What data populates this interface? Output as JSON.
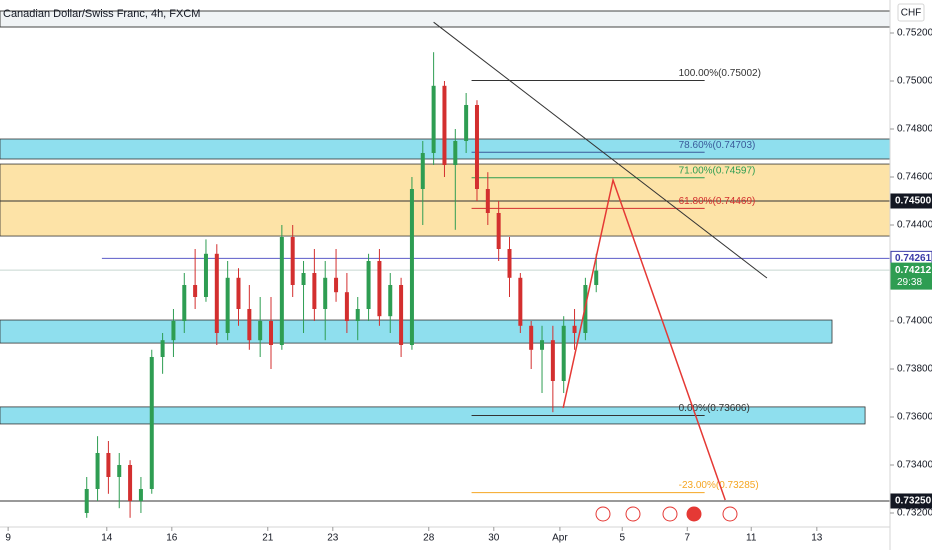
{
  "chart_data": {
    "type": "candlestick",
    "title": "Canadian Dollar/Swiss Franc, 4h, FXCM",
    "currency": "CHF",
    "up_color": "#2e9d52",
    "down_color": "#d32f2f",
    "xlim": [
      0,
      164.2
    ],
    "ylim": [
      0.731708,
      0.753375
    ],
    "xticks": [
      {
        "value": 1.5,
        "label": "9"
      },
      {
        "value": 19.7,
        "label": "14"
      },
      {
        "value": 31.7,
        "label": "16"
      },
      {
        "value": 49.4,
        "label": "21"
      },
      {
        "value": 61.4,
        "label": "23"
      },
      {
        "value": 79.1,
        "label": "28"
      },
      {
        "value": 91.1,
        "label": "30"
      },
      {
        "value": 103.3,
        "label": "Apr"
      },
      {
        "value": 114.8,
        "label": "5"
      },
      {
        "value": 126.8,
        "label": "7"
      },
      {
        "value": 138.6,
        "label": "11"
      },
      {
        "value": 150.7,
        "label": "13"
      }
    ],
    "yticks": [
      {
        "value": 0.752,
        "label": "0.75200"
      },
      {
        "value": 0.75,
        "label": "0.75000"
      },
      {
        "value": 0.748,
        "label": "0.74800"
      },
      {
        "value": 0.746,
        "label": "0.74600"
      },
      {
        "value": 0.744,
        "label": "0.74400"
      },
      {
        "value": 0.74,
        "label": "0.74000"
      },
      {
        "value": 0.738,
        "label": "0.73800"
      },
      {
        "value": 0.736,
        "label": "0.73600"
      },
      {
        "value": 0.734,
        "label": "0.73400"
      },
      {
        "value": 0.732,
        "label": "0.73200"
      }
    ],
    "candles": {
      "x": [
        16,
        18,
        20,
        22,
        24,
        26,
        28,
        30,
        32,
        34,
        36,
        38,
        40,
        42,
        44,
        46,
        48,
        50,
        52,
        54,
        56,
        58,
        60,
        62,
        64,
        66,
        68,
        70,
        72,
        74,
        76,
        78,
        80,
        82,
        84,
        86,
        88,
        90,
        92,
        94,
        96,
        98,
        100,
        102,
        104,
        106,
        108,
        110
      ],
      "open": [
        0.732,
        0.733,
        0.7345,
        0.7335,
        0.734,
        0.7325,
        0.733,
        0.7385,
        0.7392,
        0.74,
        0.7415,
        0.741,
        0.7428,
        0.7395,
        0.7418,
        0.7405,
        0.7392,
        0.74,
        0.739,
        0.7435,
        0.7415,
        0.742,
        0.7405,
        0.7418,
        0.7412,
        0.74,
        0.7405,
        0.7425,
        0.7402,
        0.7415,
        0.739,
        0.7455,
        0.747,
        0.7498,
        0.7465,
        0.7475,
        0.749,
        0.7455,
        0.7445,
        0.743,
        0.7418,
        0.7398,
        0.7388,
        0.7392,
        0.7375,
        0.7398,
        0.7395,
        0.7415
      ],
      "high": [
        0.7335,
        0.7352,
        0.735,
        0.7345,
        0.7342,
        0.7335,
        0.7388,
        0.7395,
        0.7405,
        0.742,
        0.743,
        0.7434,
        0.7432,
        0.7425,
        0.7422,
        0.7415,
        0.741,
        0.741,
        0.744,
        0.744,
        0.7425,
        0.743,
        0.7425,
        0.743,
        0.742,
        0.741,
        0.7428,
        0.743,
        0.742,
        0.7418,
        0.746,
        0.7475,
        0.7512,
        0.75,
        0.748,
        0.7495,
        0.7492,
        0.7462,
        0.745,
        0.7435,
        0.742,
        0.74,
        0.7398,
        0.7398,
        0.7402,
        0.7405,
        0.7418,
        0.7428
      ],
      "low": [
        0.7318,
        0.7325,
        0.7328,
        0.7322,
        0.7318,
        0.732,
        0.7328,
        0.7378,
        0.7385,
        0.7395,
        0.7405,
        0.7408,
        0.739,
        0.7392,
        0.7398,
        0.7388,
        0.7385,
        0.738,
        0.7388,
        0.741,
        0.7395,
        0.74,
        0.7392,
        0.7408,
        0.7395,
        0.7392,
        0.74,
        0.7398,
        0.7395,
        0.7385,
        0.7388,
        0.744,
        0.7465,
        0.746,
        0.7438,
        0.747,
        0.745,
        0.744,
        0.7425,
        0.741,
        0.7395,
        0.738,
        0.737,
        0.7362,
        0.737,
        0.7388,
        0.7392,
        0.7412
      ],
      "close": [
        0.733,
        0.7345,
        0.7335,
        0.734,
        0.7325,
        0.733,
        0.7385,
        0.7392,
        0.74,
        0.7415,
        0.741,
        0.7428,
        0.7395,
        0.7418,
        0.7405,
        0.7392,
        0.74,
        0.739,
        0.7435,
        0.7415,
        0.742,
        0.7405,
        0.7418,
        0.7412,
        0.74,
        0.7405,
        0.7425,
        0.7402,
        0.7415,
        0.739,
        0.7455,
        0.747,
        0.7498,
        0.7465,
        0.7475,
        0.749,
        0.7455,
        0.7445,
        0.743,
        0.7418,
        0.7398,
        0.7388,
        0.7392,
        0.7375,
        0.7398,
        0.7395,
        0.7415,
        0.7421
      ]
    },
    "zones": [
      {
        "top": 0.747583,
        "bottom": 0.74675,
        "x1": 0,
        "x2": 164.2,
        "color": "#8fdfee"
      },
      {
        "top": 0.74654,
        "bottom": 0.74354,
        "x1": 0,
        "x2": 164.2,
        "color": "#fde3a7"
      },
      {
        "top": 0.74004,
        "bottom": 0.73908,
        "x1": 0,
        "x2": 153.5,
        "color": "#8fdfee"
      },
      {
        "top": 0.73642,
        "bottom": 0.73571,
        "x1": 0,
        "x2": 159.6,
        "color": "#8fdfee"
      }
    ],
    "hlines": [
      {
        "value": 0.745,
        "x1": 0,
        "color": "#333333"
      },
      {
        "value": 0.7325,
        "x1": 0,
        "color": "#333333"
      },
      {
        "value": 0.74261,
        "x1": 18.8,
        "color": "#5c5cc8"
      },
      {
        "value": 0.74212,
        "x1": 0,
        "color": "#c8d8d0"
      }
    ],
    "fib": {
      "x1": 87,
      "x2": 130,
      "levels": [
        {
          "value": 0.75002,
          "label": "100.00%(0.75002)",
          "color": "#333333"
        },
        {
          "value": 0.74703,
          "label": "78.60%(0.74703)",
          "color": "#3a5a9a"
        },
        {
          "value": 0.74597,
          "label": "71.00%(0.74597)",
          "color": "#2e9d52"
        },
        {
          "value": 0.74469,
          "label": "61.80%(0.74469)",
          "color": "#d32f2f"
        },
        {
          "value": 0.73606,
          "label": "0.00%(0.73606)",
          "color": "#333333"
        },
        {
          "value": 0.73285,
          "label": "-23.00%(0.73285)",
          "color": "#f5a623"
        }
      ]
    },
    "trendline": {
      "x": [
        80,
        141.5
      ],
      "y": [
        0.75245,
        0.74179
      ]
    },
    "projection": {
      "x": [
        103.9,
        113.1,
        133.8
      ],
      "y": [
        0.73638,
        0.74587,
        0.73254
      ],
      "color": "#e53935"
    },
    "price_tags": [
      {
        "value": 0.745,
        "label": "0.74500",
        "bg": "#131722",
        "fg": "#ffffff"
      },
      {
        "value": 0.74261,
        "label": "0.74261",
        "bg": "#ffffff",
        "fg": "#3a3aa8"
      },
      {
        "value": 0.74212,
        "label": "0.74212",
        "bg": "#2e9d52",
        "fg": "#ffffff",
        "sub": "29:38"
      },
      {
        "value": 0.7325,
        "label": "0.73250",
        "bg": "#131722",
        "fg": "#ffffff"
      }
    ]
  }
}
